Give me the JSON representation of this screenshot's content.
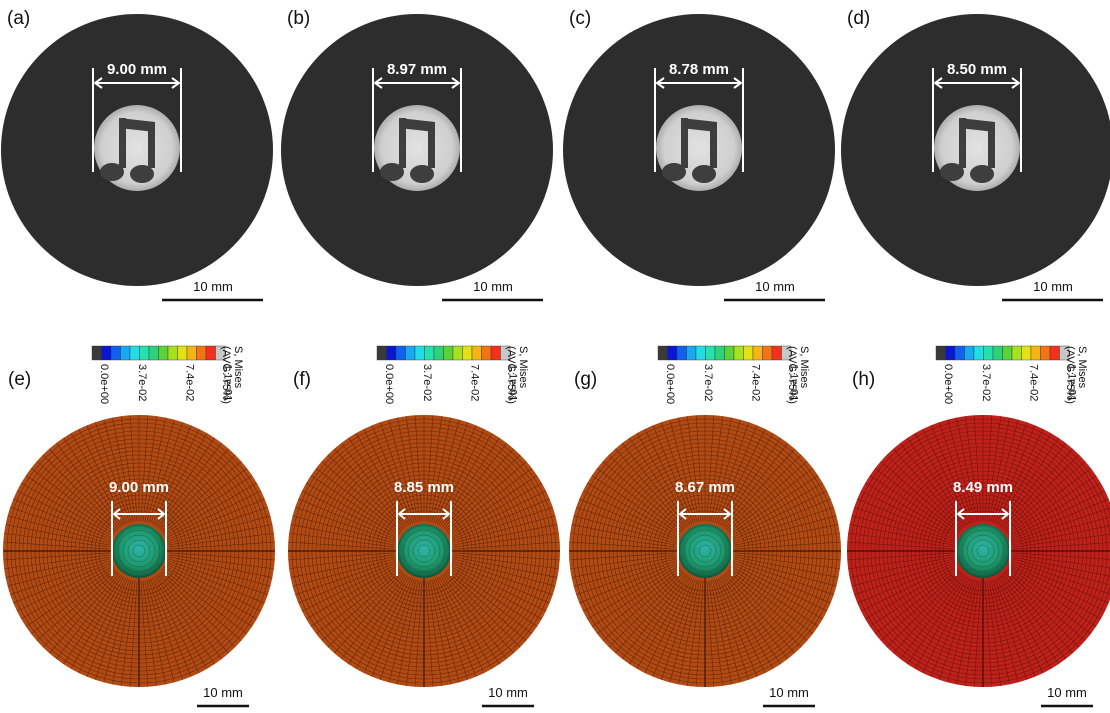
{
  "top_row": [
    {
      "label": "(a)",
      "measure": "9.00 mm",
      "scale_bar": "10 mm"
    },
    {
      "label": "(b)",
      "measure": "8.97 mm",
      "scale_bar": "10 mm"
    },
    {
      "label": "(c)",
      "measure": "8.78 mm",
      "scale_bar": "10 mm"
    },
    {
      "label": "(d)",
      "measure": "8.50 mm",
      "scale_bar": "10 mm"
    }
  ],
  "bottom_row": [
    {
      "label": "(e)",
      "measure": "9.00 mm",
      "scale_bar": "10 mm",
      "mesh_color": "#b24a14"
    },
    {
      "label": "(f)",
      "measure": "8.85 mm",
      "scale_bar": "10 mm",
      "mesh_color": "#b24a14"
    },
    {
      "label": "(g)",
      "measure": "8.67 mm",
      "scale_bar": "10 mm",
      "mesh_color": "#b24a14"
    },
    {
      "label": "(h)",
      "measure": "8.49 mm",
      "scale_bar": "10 mm",
      "mesh_color": "#c0201a"
    }
  ],
  "legend": {
    "title_1": "S, Mises",
    "title_2": "(AVG: 75%)",
    "ticks": [
      "0.0e+00",
      "3.7e-02",
      "7.4e-02",
      "1.1e-01"
    ],
    "colors": [
      "#3a3a3a",
      "#0a16d6",
      "#1260f0",
      "#19a8f2",
      "#22dce6",
      "#27e0b0",
      "#2ed27a",
      "#5ad23a",
      "#a6e01e",
      "#e4e214",
      "#f4b414",
      "#f47314",
      "#f4301a",
      "#c8c8c8"
    ]
  }
}
